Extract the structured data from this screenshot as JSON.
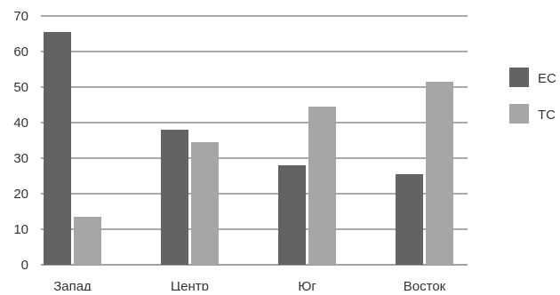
{
  "chart_data": {
    "type": "bar",
    "categories": [
      "Запад",
      "Центр",
      "Юг",
      "Восток"
    ],
    "series": [
      {
        "name": "ЕС",
        "values": [
          65.5,
          38,
          28,
          25.5
        ],
        "color": "#636363"
      },
      {
        "name": "ТС",
        "values": [
          13.5,
          34.5,
          44.5,
          51.5
        ],
        "color": "#a6a6a8"
      }
    ],
    "yticks": [
      "0",
      "10",
      "20",
      "30",
      "40",
      "50",
      "60",
      "70"
    ],
    "ylim": [
      0,
      70
    ],
    "grid": true,
    "legend_position": "right",
    "title": "",
    "xlabel": "",
    "ylabel": ""
  }
}
